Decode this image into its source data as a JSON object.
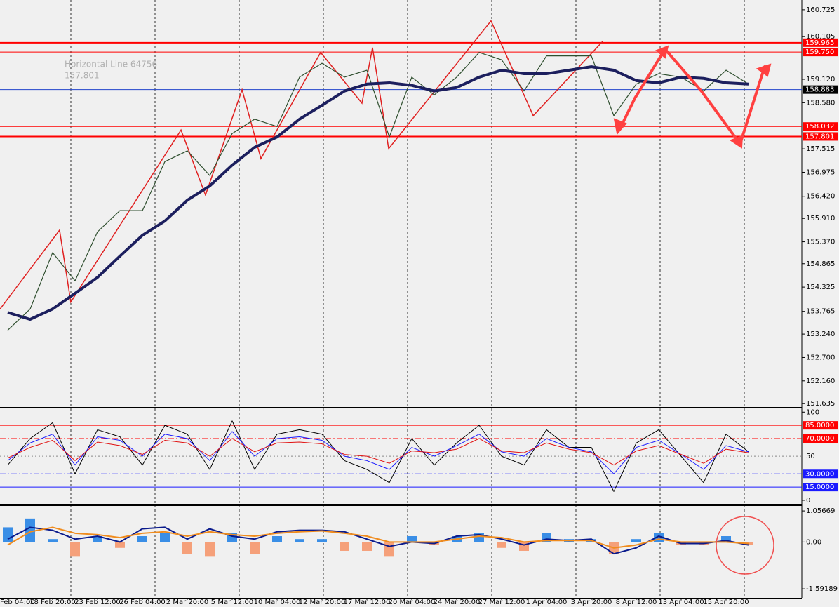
{
  "chart_data": [
    {
      "type": "line",
      "categories": [
        "Feb 04:00",
        null,
        "18 Feb 20:00",
        null,
        "23 Feb 12:00",
        null,
        "26 Feb 04:00",
        null,
        "2 Mar 20:00",
        null,
        "5 Mar 12:00",
        null,
        "10 Mar 04:00",
        null,
        "12 Mar 20:00",
        null,
        "17 Mar 12:00",
        null,
        "20 Mar 04:00",
        null,
        "24 Mar 20:00",
        null,
        "27 Mar 12:00",
        null,
        "1 Apr 04:00",
        null,
        "3 Apr 20:00",
        null,
        "8 Apr 12:00",
        null,
        "13 Apr 04:00",
        null,
        "15 Apr 20:00",
        null
      ],
      "series": [
        {
          "name": "price",
          "color": "#2f4f2f",
          "width": 1.2,
          "values": [
            153.33,
            153.82,
            155.12,
            154.47,
            155.6,
            156.09,
            156.09,
            157.22,
            157.47,
            156.9,
            157.87,
            158.2,
            158.03,
            159.17,
            159.49,
            159.17,
            159.33,
            157.79,
            159.17,
            158.76,
            159.17,
            159.74,
            159.57,
            158.85,
            159.66,
            159.66,
            159.66,
            158.28,
            159.01,
            159.25,
            159.17,
            158.85,
            159.33,
            159.01
          ]
        },
        {
          "name": "ma",
          "color": "#1c1f5e",
          "width": 4,
          "values": [
            153.74,
            153.58,
            153.82,
            154.18,
            154.55,
            155.04,
            155.52,
            155.85,
            156.33,
            156.66,
            157.14,
            157.55,
            157.79,
            158.2,
            158.52,
            158.85,
            159.01,
            159.04,
            158.98,
            158.85,
            158.93,
            159.17,
            159.33,
            159.25,
            159.25,
            159.33,
            159.41,
            159.33,
            159.09,
            159.04,
            159.17,
            159.14,
            159.04,
            159.01
          ]
        }
      ],
      "zigzag": {
        "color": "#e02020",
        "x": [
          -0.34,
          2.31,
          2.81,
          7.72,
          8.81,
          10.44,
          11.28,
          13.94,
          15.78,
          16.25,
          16.97,
          21.53,
          23.41,
          26.53
        ],
        "values": [
          153.82,
          155.64,
          153.98,
          157.95,
          156.45,
          158.88,
          157.29,
          159.74,
          158.57,
          159.85,
          157.52,
          160.47,
          158.28,
          160.01
        ]
      },
      "levels": [
        {
          "value": 159.965,
          "color": "#ff0000",
          "width": 2
        },
        {
          "value": 159.75,
          "label": "159.750",
          "color": "#ff0000",
          "width": 1
        },
        {
          "value": 158.883,
          "color": "#2244cc",
          "width": 1,
          "box": "#000000"
        },
        {
          "value": 158.032,
          "color": "#ff0000",
          "width": 1
        },
        {
          "value": 157.801,
          "color": "#ff0000",
          "width": 2
        }
      ],
      "annotations": [
        "Horizontal Line 64756",
        "157.801"
      ],
      "ylim": [
        151.59,
        160.95
      ],
      "yticks": [
        160.725,
        160.105,
        {
          "value": 159.12,
          "label": "159.120"
        },
        {
          "value": 158.58,
          "label": "158.580"
        },
        157.515,
        156.975,
        {
          "value": 156.42,
          "label": "156.420"
        },
        {
          "value": 155.91,
          "label": "155.910"
        },
        {
          "value": 155.37,
          "label": "155.370"
        },
        154.865,
        154.325,
        153.765,
        {
          "value": 153.24,
          "label": "153.240"
        },
        {
          "value": 152.7,
          "label": "152.700"
        },
        {
          "value": 152.16,
          "label": "152.160"
        },
        151.635
      ]
    },
    {
      "type": "line",
      "series": [
        {
          "name": "fast",
          "color": "#000000",
          "width": 1,
          "values": [
            40,
            70,
            88,
            30,
            80,
            72,
            40,
            85,
            75,
            35,
            90,
            35,
            75,
            80,
            75,
            45,
            35,
            20,
            70,
            40,
            65,
            85,
            50,
            40,
            80,
            60,
            60,
            10,
            65,
            80,
            50,
            20,
            75,
            55
          ]
        },
        {
          "name": "mid",
          "color": "#1a1aff",
          "width": 1,
          "values": [
            45,
            65,
            75,
            40,
            72,
            68,
            50,
            75,
            70,
            45,
            78,
            50,
            70,
            72,
            68,
            50,
            45,
            35,
            60,
            50,
            62,
            75,
            55,
            50,
            70,
            60,
            55,
            30,
            60,
            68,
            52,
            35,
            62,
            55
          ]
        },
        {
          "name": "slow",
          "color": "#e01010",
          "width": 1,
          "values": [
            48,
            60,
            68,
            45,
            66,
            62,
            52,
            68,
            65,
            50,
            70,
            55,
            65,
            66,
            64,
            52,
            50,
            42,
            56,
            54,
            58,
            70,
            56,
            54,
            65,
            58,
            54,
            40,
            56,
            62,
            52,
            42,
            58,
            54
          ]
        }
      ],
      "levels": [
        {
          "value": 85,
          "label": "85.0000",
          "color": "#ff0000",
          "dash": "none",
          "box": "#ff0000"
        },
        {
          "value": 70,
          "label": "70.0000",
          "color": "#ff0000",
          "dash": "8 3 2 3",
          "box": "#ff0000"
        },
        {
          "value": 50,
          "color": "#888888",
          "dash": "2 3"
        },
        {
          "value": 30,
          "label": "30.0000",
          "color": "#1a1aff",
          "dash": "8 3 2 3",
          "box": "#1a1aff"
        },
        {
          "value": 15,
          "label": "15.0000",
          "color": "#1a1aff",
          "dash": "none",
          "box": "#1a1aff"
        }
      ],
      "ylim": [
        -4,
        105
      ],
      "yticks": [
        100,
        0
      ]
    },
    {
      "type": "bar",
      "values": [
        0.5,
        0.8,
        0.1,
        -0.5,
        0.2,
        -0.2,
        0.2,
        0.3,
        -0.4,
        -0.5,
        0.3,
        -0.4,
        0.2,
        0.1,
        0.1,
        -0.3,
        -0.3,
        -0.5,
        0.2,
        -0.1,
        0.2,
        0.3,
        -0.2,
        -0.3,
        0.3,
        0.1,
        0.1,
        -0.4,
        0.1,
        0.3,
        -0.1,
        -0.1,
        0.2,
        -0.1
      ],
      "color": "#3a8ee6",
      "negative_color": "#f5a07a",
      "series": [
        {
          "name": "macd",
          "color": "#0a1a8c",
          "width": 2,
          "values": [
            0.1,
            0.5,
            0.4,
            0.1,
            0.2,
            0,
            0.45,
            0.5,
            0.1,
            0.45,
            0.2,
            0.1,
            0.35,
            0.4,
            0.4,
            0.35,
            0.1,
            -0.15,
            0,
            -0.05,
            0.2,
            0.25,
            0.1,
            -0.1,
            0.1,
            0.05,
            0.1,
            -0.4,
            -0.2,
            0.2,
            -0.05,
            -0.05,
            0.05,
            -0.1
          ]
        },
        {
          "name": "signal",
          "color": "#f08c1e",
          "width": 2,
          "values": [
            -0.1,
            0.35,
            0.5,
            0.3,
            0.25,
            0.15,
            0.3,
            0.35,
            0.2,
            0.35,
            0.25,
            0.2,
            0.3,
            0.35,
            0.38,
            0.3,
            0.2,
            0,
            0,
            0,
            0.1,
            0.2,
            0.15,
            0,
            0.05,
            0.05,
            0.05,
            -0.2,
            -0.1,
            0.1,
            0,
            0,
            0,
            -0.05
          ]
        }
      ],
      "ylim": [
        -1.899,
        1.226
      ],
      "yticks": [
        1.05669,
        {
          "value": 0,
          "label": "0.00"
        },
        -1.59189
      ]
    }
  ]
}
